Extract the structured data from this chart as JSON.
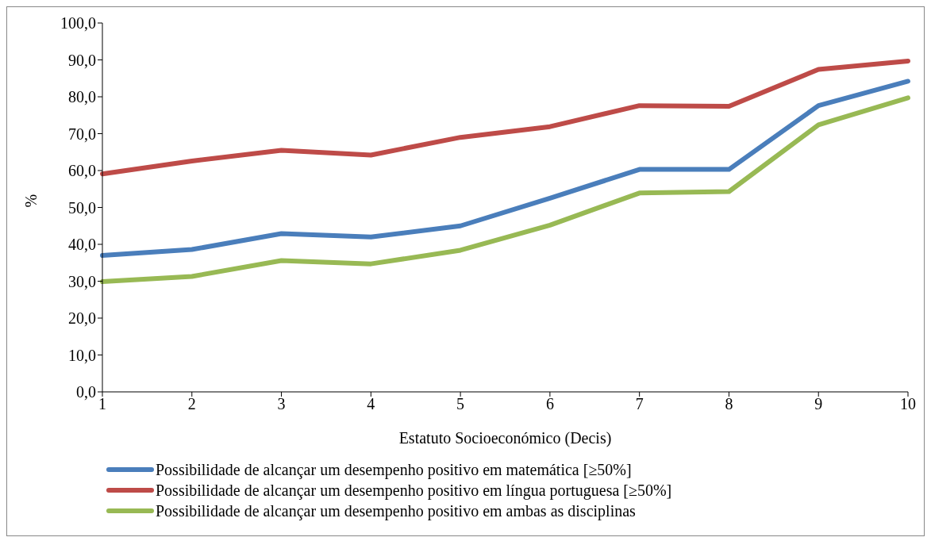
{
  "chart_data": {
    "type": "line",
    "xlabel": "Estatuto Socioeconómico (Decis)",
    "ylabel": "%",
    "categories": [
      "1",
      "2",
      "3",
      "4",
      "5",
      "6",
      "7",
      "8",
      "9",
      "10"
    ],
    "series": [
      {
        "name": "Possibilidade de alcançar um desempenho positivo em matemática [≥50%]",
        "color": "#4a7ebb",
        "values": [
          37.0,
          38.6,
          42.9,
          42.0,
          45.0,
          52.5,
          60.3,
          60.3,
          77.6,
          84.2
        ]
      },
      {
        "name": "Possibilidade de alcançar um desempenho positivo em língua portuguesa [≥50%]",
        "color": "#be4b48",
        "values": [
          59.1,
          62.6,
          65.5,
          64.2,
          69.0,
          71.9,
          77.6,
          77.4,
          87.4,
          89.7
        ]
      },
      {
        "name": "Possibilidade de alcançar um desempenho positivo em ambas as disciplinas",
        "color": "#98b954",
        "values": [
          29.9,
          31.3,
          35.6,
          34.7,
          38.4,
          45.2,
          53.9,
          54.3,
          72.4,
          79.7
        ]
      }
    ],
    "ylim": [
      0,
      100
    ],
    "yticks": [
      {
        "value": 0,
        "label": "0,0"
      },
      {
        "value": 10,
        "label": "10,0"
      },
      {
        "value": 20,
        "label": "20,0"
      },
      {
        "value": 30,
        "label": "30,0"
      },
      {
        "value": 40,
        "label": "40,0"
      },
      {
        "value": 50,
        "label": "50,0"
      },
      {
        "value": 60,
        "label": "60,0"
      },
      {
        "value": 70,
        "label": "70,0"
      },
      {
        "value": 80,
        "label": "80,0"
      },
      {
        "value": 90,
        "label": "90,0"
      },
      {
        "value": 100,
        "label": "100,0"
      }
    ],
    "grid": false,
    "legend": "bottom",
    "marker": "none",
    "line_style": "solid"
  }
}
